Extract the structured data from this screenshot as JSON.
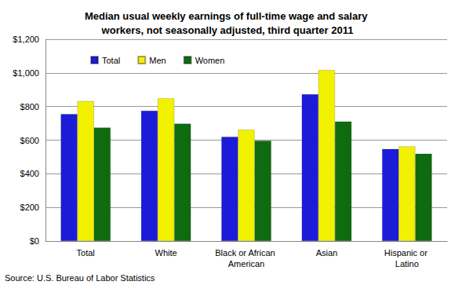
{
  "chart_data": {
    "type": "bar",
    "title": "Median usual weekly earnings of full-time wage and salary workers, not seasonally adjusted, third quarter 2011",
    "categories": [
      "Total",
      "White",
      "Black or African American",
      "Asian",
      "Hispanic or Latino"
    ],
    "series": [
      {
        "name": "Total",
        "color": "#1c1cd8",
        "values": [
          755,
          775,
          620,
          873,
          547
        ]
      },
      {
        "name": "Men",
        "color": "#f2f200",
        "values": [
          832,
          849,
          662,
          1017,
          563
        ]
      },
      {
        "name": "Women",
        "color": "#0f6b0f",
        "values": [
          675,
          698,
          597,
          711,
          519
        ]
      }
    ],
    "ylim": [
      0,
      1200
    ],
    "yticks": [
      {
        "value": 0,
        "label": "$0"
      },
      {
        "value": 200,
        "label": "$200"
      },
      {
        "value": 400,
        "label": "$400"
      },
      {
        "value": 600,
        "label": "$600"
      },
      {
        "value": 800,
        "label": "$800"
      },
      {
        "value": 1000,
        "label": "$1,000"
      },
      {
        "value": 1200,
        "label": "$1,200"
      }
    ],
    "grid": true,
    "legend": "top-left",
    "annotations": [
      "Source: U.S. Bureau of Labor Statistics"
    ]
  }
}
